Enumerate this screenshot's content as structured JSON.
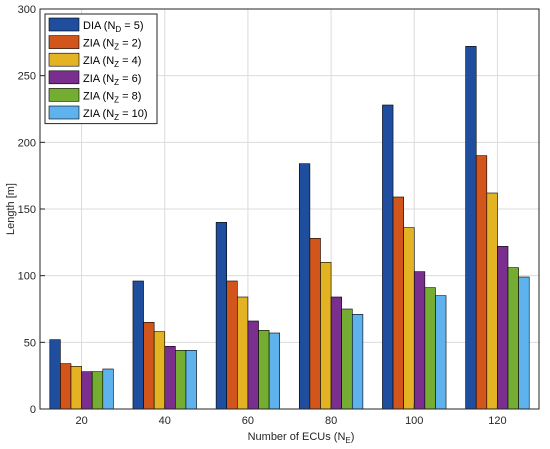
{
  "chart_data": {
    "type": "bar",
    "categories": [
      "20",
      "40",
      "60",
      "80",
      "100",
      "120"
    ],
    "xlabel": "Number of ECUs (N",
    "xlabel_sub": "E",
    "xlabel_end": ")",
    "ylabel": "Length [m]",
    "ylim": [
      0,
      300
    ],
    "yticks": [
      "0",
      "50",
      "100",
      "150",
      "200",
      "250",
      "300"
    ],
    "grid": true,
    "legend_position": "top-left",
    "series": [
      {
        "name_main": "DIA (N",
        "name_sub": "D",
        "name_end": " = 5)",
        "color": "#1f4e9e",
        "values": [
          52,
          96,
          140,
          184,
          228,
          272
        ]
      },
      {
        "name_main": "ZIA (N",
        "name_sub": "Z",
        "name_end": " = 2)",
        "color": "#d2561c",
        "values": [
          34,
          65,
          96,
          128,
          159,
          190
        ]
      },
      {
        "name_main": "ZIA (N",
        "name_sub": "Z",
        "name_end": " = 4)",
        "color": "#e3b324",
        "values": [
          32,
          58,
          84,
          110,
          136,
          162
        ]
      },
      {
        "name_main": "ZIA (N",
        "name_sub": "Z",
        "name_end": " = 6)",
        "color": "#7a2f8e",
        "values": [
          28,
          47,
          66,
          84,
          103,
          122
        ]
      },
      {
        "name_main": "ZIA (N",
        "name_sub": "Z",
        "name_end": " = 8)",
        "color": "#74ad31",
        "values": [
          28,
          44,
          59,
          75,
          91,
          106
        ]
      },
      {
        "name_main": "ZIA (N",
        "name_sub": "Z",
        "name_end": " = 10)",
        "color": "#5eb2ee",
        "values": [
          30,
          44,
          57,
          71,
          85,
          99
        ]
      }
    ]
  }
}
